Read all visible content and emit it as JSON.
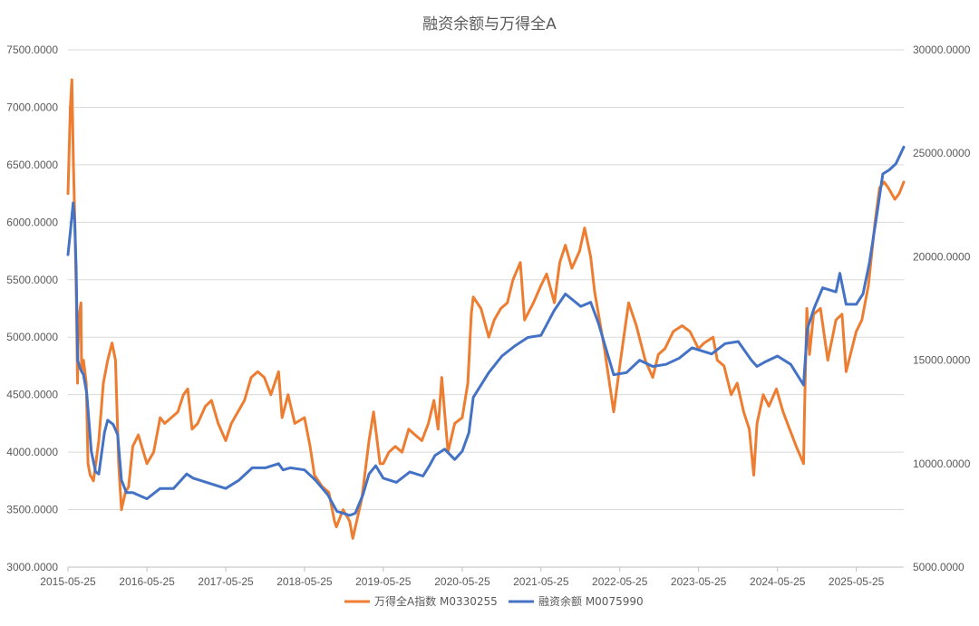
{
  "chart_data": {
    "type": "line",
    "title": "融资余额与万得全A",
    "x_tick_labels": [
      "2015-05-25",
      "2016-05-25",
      "2017-05-25",
      "2018-05-25",
      "2019-05-25",
      "2020-05-25",
      "2021-05-25",
      "2022-05-25",
      "2023-05-25",
      "2024-05-25",
      "2025-05-25"
    ],
    "x_range": [
      "2015-05-25",
      "2025-12-31"
    ],
    "y_left": {
      "range": [
        3000,
        7500
      ],
      "ticks": [
        3000,
        3500,
        4000,
        4500,
        5000,
        5500,
        6000,
        6500,
        7000,
        7500
      ],
      "tick_labels": [
        "3000.0000",
        "3500.0000",
        "4000.0000",
        "4500.0000",
        "5000.0000",
        "5500.0000",
        "6000.0000",
        "6500.0000",
        "7000.0000",
        "7500.0000"
      ]
    },
    "y_right": {
      "range": [
        5000,
        30000
      ],
      "ticks": [
        5000,
        10000,
        15000,
        20000,
        25000,
        30000
      ],
      "tick_labels": [
        "5000.0000",
        "10000.0000",
        "15000.0000",
        "20000.0000",
        "25000.0000",
        "30000.0000"
      ]
    },
    "grid": true,
    "legend_position": "bottom",
    "series": [
      {
        "name": "万得全A指数 M0330255",
        "axis": "left",
        "color": "#ED7D31",
        "points": [
          [
            "2015-05-25",
            6250
          ],
          [
            "2015-06-05",
            7000
          ],
          [
            "2015-06-12",
            7240
          ],
          [
            "2015-06-19",
            6500
          ],
          [
            "2015-06-26",
            6000
          ],
          [
            "2015-07-03",
            5300
          ],
          [
            "2015-07-08",
            4600
          ],
          [
            "2015-07-10",
            4900
          ],
          [
            "2015-07-17",
            5200
          ],
          [
            "2015-07-24",
            5300
          ],
          [
            "2015-07-27",
            4700
          ],
          [
            "2015-08-05",
            4800
          ],
          [
            "2015-08-18",
            4600
          ],
          [
            "2015-08-26",
            3900
          ],
          [
            "2015-09-05",
            3800
          ],
          [
            "2015-09-20",
            3750
          ],
          [
            "2015-10-15",
            4100
          ],
          [
            "2015-11-05",
            4600
          ],
          [
            "2015-11-25",
            4800
          ],
          [
            "2015-12-15",
            4950
          ],
          [
            "2015-12-31",
            4800
          ],
          [
            "2016-01-15",
            3900
          ],
          [
            "2016-01-28",
            3500
          ],
          [
            "2016-02-15",
            3650
          ],
          [
            "2016-03-01",
            3700
          ],
          [
            "2016-03-20",
            4050
          ],
          [
            "2016-04-15",
            4150
          ],
          [
            "2016-05-25",
            3900
          ],
          [
            "2016-06-25",
            4000
          ],
          [
            "2016-07-25",
            4300
          ],
          [
            "2016-08-15",
            4250
          ],
          [
            "2016-09-15",
            4300
          ],
          [
            "2016-10-15",
            4350
          ],
          [
            "2016-11-10",
            4500
          ],
          [
            "2016-11-30",
            4550
          ],
          [
            "2016-12-20",
            4200
          ],
          [
            "2017-01-15",
            4250
          ],
          [
            "2017-02-20",
            4400
          ],
          [
            "2017-03-20",
            4450
          ],
          [
            "2017-04-20",
            4250
          ],
          [
            "2017-05-25",
            4100
          ],
          [
            "2017-06-20",
            4250
          ],
          [
            "2017-07-20",
            4350
          ],
          [
            "2017-08-20",
            4450
          ],
          [
            "2017-09-20",
            4650
          ],
          [
            "2017-10-20",
            4700
          ],
          [
            "2017-11-20",
            4650
          ],
          [
            "2017-12-20",
            4500
          ],
          [
            "2018-01-25",
            4700
          ],
          [
            "2018-02-10",
            4300
          ],
          [
            "2018-03-10",
            4500
          ],
          [
            "2018-04-10",
            4250
          ],
          [
            "2018-05-25",
            4300
          ],
          [
            "2018-06-20",
            4050
          ],
          [
            "2018-07-10",
            3800
          ],
          [
            "2018-08-15",
            3700
          ],
          [
            "2018-09-15",
            3650
          ],
          [
            "2018-10-11",
            3400
          ],
          [
            "2018-10-20",
            3350
          ],
          [
            "2018-11-20",
            3500
          ],
          [
            "2018-12-20",
            3400
          ],
          [
            "2019-01-04",
            3250
          ],
          [
            "2019-02-15",
            3600
          ],
          [
            "2019-03-20",
            4100
          ],
          [
            "2019-04-10",
            4350
          ],
          [
            "2019-05-10",
            3900
          ],
          [
            "2019-05-25",
            3900
          ],
          [
            "2019-06-20",
            4000
          ],
          [
            "2019-07-20",
            4050
          ],
          [
            "2019-08-20",
            4000
          ],
          [
            "2019-09-20",
            4200
          ],
          [
            "2019-10-20",
            4150
          ],
          [
            "2019-11-20",
            4100
          ],
          [
            "2019-12-20",
            4250
          ],
          [
            "2020-01-15",
            4450
          ],
          [
            "2020-02-03",
            4200
          ],
          [
            "2020-02-20",
            4650
          ],
          [
            "2020-03-20",
            4000
          ],
          [
            "2020-04-20",
            4250
          ],
          [
            "2020-05-25",
            4300
          ],
          [
            "2020-06-20",
            4600
          ],
          [
            "2020-07-06",
            5200
          ],
          [
            "2020-07-15",
            5350
          ],
          [
            "2020-08-20",
            5250
          ],
          [
            "2020-09-25",
            5000
          ],
          [
            "2020-10-20",
            5150
          ],
          [
            "2020-11-20",
            5250
          ],
          [
            "2020-12-20",
            5300
          ],
          [
            "2021-01-15",
            5500
          ],
          [
            "2021-02-18",
            5650
          ],
          [
            "2021-03-10",
            5150
          ],
          [
            "2021-04-20",
            5300
          ],
          [
            "2021-05-25",
            5450
          ],
          [
            "2021-06-20",
            5550
          ],
          [
            "2021-07-26",
            5300
          ],
          [
            "2021-08-20",
            5650
          ],
          [
            "2021-09-15",
            5800
          ],
          [
            "2021-10-15",
            5600
          ],
          [
            "2021-11-20",
            5750
          ],
          [
            "2021-12-13",
            5950
          ],
          [
            "2022-01-10",
            5700
          ],
          [
            "2022-01-28",
            5400
          ],
          [
            "2022-03-15",
            4900
          ],
          [
            "2022-04-27",
            4350
          ],
          [
            "2022-05-25",
            4750
          ],
          [
            "2022-06-20",
            5100
          ],
          [
            "2022-07-05",
            5300
          ],
          [
            "2022-08-10",
            5100
          ],
          [
            "2022-09-20",
            4800
          ],
          [
            "2022-10-25",
            4650
          ],
          [
            "2022-11-20",
            4850
          ],
          [
            "2022-12-20",
            4900
          ],
          [
            "2023-01-28",
            5050
          ],
          [
            "2023-03-10",
            5100
          ],
          [
            "2023-04-15",
            5050
          ],
          [
            "2023-05-25",
            4900
          ],
          [
            "2023-06-20",
            4950
          ],
          [
            "2023-07-31",
            5000
          ],
          [
            "2023-08-20",
            4800
          ],
          [
            "2023-09-20",
            4750
          ],
          [
            "2023-10-23",
            4500
          ],
          [
            "2023-11-20",
            4600
          ],
          [
            "2023-12-20",
            4350
          ],
          [
            "2024-01-15",
            4200
          ],
          [
            "2024-02-05",
            3800
          ],
          [
            "2024-02-20",
            4250
          ],
          [
            "2024-03-20",
            4500
          ],
          [
            "2024-04-15",
            4400
          ],
          [
            "2024-05-20",
            4550
          ],
          [
            "2024-06-20",
            4350
          ],
          [
            "2024-07-20",
            4200
          ],
          [
            "2024-08-20",
            4050
          ],
          [
            "2024-09-23",
            3900
          ],
          [
            "2024-09-27",
            4350
          ],
          [
            "2024-10-08",
            5250
          ],
          [
            "2024-10-20",
            4850
          ],
          [
            "2024-11-08",
            5200
          ],
          [
            "2024-12-10",
            5250
          ],
          [
            "2025-01-13",
            4800
          ],
          [
            "2025-02-20",
            5150
          ],
          [
            "2025-03-20",
            5200
          ],
          [
            "2025-04-08",
            4700
          ],
          [
            "2025-05-25",
            5050
          ],
          [
            "2025-06-20",
            5150
          ],
          [
            "2025-07-20",
            5450
          ],
          [
            "2025-08-20",
            6000
          ],
          [
            "2025-09-10",
            6300
          ],
          [
            "2025-10-01",
            6350
          ],
          [
            "2025-10-20",
            6300
          ],
          [
            "2025-11-20",
            6200
          ],
          [
            "2025-12-10",
            6250
          ],
          [
            "2025-12-31",
            6350
          ]
        ]
      },
      {
        "name": "融资余额 M0075990",
        "axis": "right",
        "color": "#4472C4",
        "points": [
          [
            "2015-05-25",
            20100
          ],
          [
            "2015-06-08",
            21500
          ],
          [
            "2015-06-18",
            22600
          ],
          [
            "2015-06-25",
            21700
          ],
          [
            "2015-07-02",
            19500
          ],
          [
            "2015-07-09",
            15000
          ],
          [
            "2015-07-20",
            14600
          ],
          [
            "2015-08-05",
            14300
          ],
          [
            "2015-08-20",
            13400
          ],
          [
            "2015-09-10",
            10600
          ],
          [
            "2015-09-30",
            9600
          ],
          [
            "2015-10-15",
            9500
          ],
          [
            "2015-11-10",
            11500
          ],
          [
            "2015-11-25",
            12100
          ],
          [
            "2015-12-20",
            11900
          ],
          [
            "2016-01-10",
            11400
          ],
          [
            "2016-01-28",
            9200
          ],
          [
            "2016-02-20",
            8600
          ],
          [
            "2016-03-20",
            8600
          ],
          [
            "2016-05-25",
            8300
          ],
          [
            "2016-07-25",
            8800
          ],
          [
            "2016-09-25",
            8800
          ],
          [
            "2016-11-25",
            9500
          ],
          [
            "2016-12-25",
            9300
          ],
          [
            "2017-02-25",
            9100
          ],
          [
            "2017-04-25",
            8900
          ],
          [
            "2017-05-25",
            8800
          ],
          [
            "2017-07-25",
            9200
          ],
          [
            "2017-09-25",
            9800
          ],
          [
            "2017-11-25",
            9800
          ],
          [
            "2018-01-25",
            10000
          ],
          [
            "2018-02-15",
            9700
          ],
          [
            "2018-03-20",
            9800
          ],
          [
            "2018-05-25",
            9700
          ],
          [
            "2018-07-15",
            9200
          ],
          [
            "2018-09-10",
            8500
          ],
          [
            "2018-10-22",
            7700
          ],
          [
            "2018-12-20",
            7500
          ],
          [
            "2019-01-15",
            7600
          ],
          [
            "2019-02-20",
            8500
          ],
          [
            "2019-03-20",
            9500
          ],
          [
            "2019-04-20",
            9900
          ],
          [
            "2019-05-25",
            9300
          ],
          [
            "2019-07-25",
            9100
          ],
          [
            "2019-09-25",
            9600
          ],
          [
            "2019-11-25",
            9400
          ],
          [
            "2019-12-25",
            9900
          ],
          [
            "2020-01-20",
            10400
          ],
          [
            "2020-03-05",
            10700
          ],
          [
            "2020-04-20",
            10200
          ],
          [
            "2020-05-25",
            10600
          ],
          [
            "2020-06-25",
            11500
          ],
          [
            "2020-07-15",
            13200
          ],
          [
            "2020-09-25",
            14400
          ],
          [
            "2020-11-25",
            15200
          ],
          [
            "2021-01-25",
            15700
          ],
          [
            "2021-03-25",
            16100
          ],
          [
            "2021-05-25",
            16200
          ],
          [
            "2021-07-25",
            17400
          ],
          [
            "2021-09-15",
            18200
          ],
          [
            "2021-11-25",
            17600
          ],
          [
            "2022-01-10",
            17800
          ],
          [
            "2022-02-15",
            16800
          ],
          [
            "2022-04-27",
            14300
          ],
          [
            "2022-06-25",
            14400
          ],
          [
            "2022-08-25",
            15000
          ],
          [
            "2022-10-25",
            14700
          ],
          [
            "2022-12-25",
            14800
          ],
          [
            "2023-02-25",
            15100
          ],
          [
            "2023-04-25",
            15600
          ],
          [
            "2023-05-25",
            15500
          ],
          [
            "2023-07-25",
            15300
          ],
          [
            "2023-09-25",
            15800
          ],
          [
            "2023-11-25",
            15900
          ],
          [
            "2024-01-25",
            15000
          ],
          [
            "2024-02-20",
            14700
          ],
          [
            "2024-03-25",
            14900
          ],
          [
            "2024-05-25",
            15200
          ],
          [
            "2024-07-25",
            14800
          ],
          [
            "2024-09-23",
            13800
          ],
          [
            "2024-10-10",
            16500
          ],
          [
            "2024-11-10",
            17500
          ],
          [
            "2024-12-20",
            18500
          ],
          [
            "2025-02-20",
            18300
          ],
          [
            "2025-03-10",
            19200
          ],
          [
            "2025-04-08",
            17700
          ],
          [
            "2025-05-25",
            17700
          ],
          [
            "2025-06-25",
            18200
          ],
          [
            "2025-07-25",
            19700
          ],
          [
            "2025-08-25",
            21800
          ],
          [
            "2025-09-25",
            24000
          ],
          [
            "2025-10-25",
            24200
          ],
          [
            "2025-11-25",
            24500
          ],
          [
            "2025-12-31",
            25300
          ]
        ]
      }
    ]
  }
}
